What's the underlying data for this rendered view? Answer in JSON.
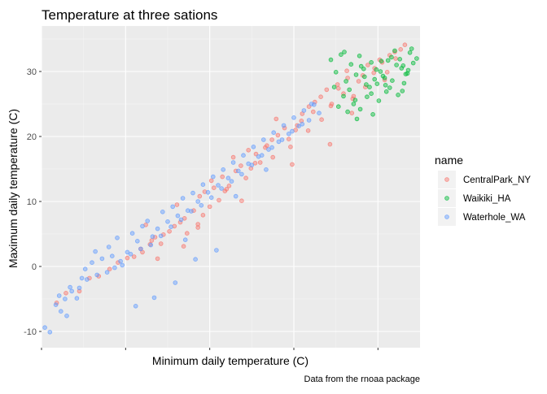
{
  "chart_data": {
    "type": "scatter",
    "title": "Temperature at three sations",
    "xlabel": "Minimum daily temperature (C)",
    "ylabel": "Maximum daily temperature (C)",
    "caption": "Data from the rnoaa package",
    "xlim": [
      -15,
      30
    ],
    "ylim": [
      -12.5,
      37
    ],
    "x_ticks": [
      "",
      "",
      "",
      "",
      ""
    ],
    "y_ticks": [
      -10,
      0,
      10,
      20,
      30
    ],
    "grid": true,
    "legend": {
      "title": "name",
      "position": "right",
      "entries": [
        "CentralPark_NY",
        "Waikiki_HA",
        "Waterhole_WA"
      ]
    },
    "series": [
      {
        "name": "CentralPark_NY",
        "color": "#F8766D",
        "x": [
          -12.1,
          -13.2,
          -9.3,
          -10.5,
          -6.9,
          -8.2,
          -4.8,
          -5.9,
          -3.2,
          -2.1,
          -4.0,
          -1.5,
          -0.8,
          -3.0,
          0.2,
          -1.9,
          1.5,
          -0.5,
          2.3,
          0.8,
          1.9,
          3.1,
          2.0,
          3.6,
          4.2,
          -2.6,
          1.1,
          3.8,
          5.0,
          4.4,
          6.1,
          5.5,
          6.8,
          5.2,
          7.3,
          6.5,
          8.1,
          7.0,
          8.7,
          9.3,
          7.8,
          9.9,
          10.5,
          11.0,
          9.6,
          11.8,
          10.4,
          12.4,
          11.6,
          13.1,
          12.5,
          13.9,
          14.4,
          12.9,
          15.2,
          14.6,
          16.0,
          15.4,
          16.8,
          15.9,
          17.5,
          16.7,
          18.2,
          17.3,
          18.9,
          19.5,
          18.3,
          20.2,
          19.4,
          20.9,
          21.4,
          20.3,
          22.0,
          21.3,
          22.7,
          23.2,
          22.1,
          23.8,
          24.5,
          23.5,
          25.2,
          24.6,
          25.8,
          26.4,
          25.5,
          27.0,
          26.1,
          27.7,
          28.2,
          27.1,
          21.9,
          14.8,
          8.8,
          3.6,
          -1.2,
          19.3
        ],
        "y": [
          -4.1,
          -5.6,
          -1.8,
          -3.8,
          -0.4,
          -1.5,
          1.3,
          0.6,
          2.7,
          3.4,
          1.5,
          4.5,
          3.5,
          2.2,
          5.4,
          4.0,
          6.8,
          4.9,
          5.1,
          6.2,
          3.1,
          8.6,
          7.4,
          6.0,
          7.9,
          6.4,
          9.5,
          10.8,
          9.2,
          11.5,
          10.2,
          12.1,
          11.6,
          13.2,
          12.4,
          13.8,
          14.7,
          11.9,
          15.5,
          13.6,
          16.8,
          15.1,
          17.3,
          16.0,
          17.9,
          18.6,
          15.9,
          19.5,
          18.3,
          20.2,
          16.8,
          21.3,
          19.6,
          22.7,
          21.0,
          18.4,
          23.5,
          21.7,
          24.6,
          22.4,
          25.3,
          20.9,
          26.1,
          23.8,
          27.2,
          25.0,
          22.6,
          28.0,
          24.7,
          26.6,
          29.0,
          27.4,
          25.8,
          30.1,
          28.5,
          29.4,
          26.2,
          31.0,
          29.8,
          27.6,
          31.8,
          30.5,
          28.7,
          32.5,
          31.4,
          33.0,
          29.9,
          33.4,
          34.1,
          32.0,
          23.6,
          15.7,
          10.1,
          6.5,
          1.2,
          18.8
        ]
      },
      {
        "name": "Waikiki_HA",
        "color": "#00BA38",
        "x": [
          19.4,
          20.0,
          20.6,
          19.8,
          21.2,
          21.8,
          20.9,
          22.4,
          21.6,
          23.0,
          22.3,
          23.6,
          22.8,
          24.2,
          23.4,
          24.8,
          24.0,
          25.4,
          24.6,
          26.0,
          25.3,
          26.6,
          25.8,
          27.2,
          26.4,
          27.8,
          27.0,
          28.3,
          27.6,
          28.8,
          28.1,
          29.2,
          28.6,
          29.6,
          21.4,
          22.1,
          22.9,
          23.7,
          24.4,
          25.1,
          25.9,
          26.7,
          27.4,
          28.0,
          28.5,
          20.3,
          21.0,
          26.2,
          24.9,
          23.3,
          22.5,
          27.9,
          29.0,
          25.6,
          24.2
        ],
        "y": [
          31.8,
          29.9,
          32.6,
          27.6,
          28.5,
          31.1,
          26.2,
          29.5,
          27.2,
          30.8,
          25.6,
          28.0,
          32.4,
          26.6,
          29.2,
          30.3,
          27.6,
          31.6,
          28.8,
          26.9,
          30.0,
          32.2,
          29.0,
          31.0,
          27.5,
          30.5,
          33.2,
          29.6,
          31.9,
          32.9,
          28.2,
          31.3,
          30.2,
          32.0,
          23.8,
          25.0,
          24.2,
          26.1,
          23.4,
          25.5,
          27.9,
          28.6,
          26.4,
          30.9,
          29.7,
          24.6,
          33.0,
          31.7,
          28.1,
          30.4,
          22.7,
          27.0,
          33.5,
          29.3,
          31.4
        ]
      },
      {
        "name": "Waterhole_WA",
        "color": "#619CFF",
        "x": [
          -14.6,
          -14.0,
          -13.3,
          -12.7,
          -12.0,
          -11.4,
          -12.9,
          -10.8,
          -10.2,
          -11.6,
          -9.6,
          -9.0,
          -8.4,
          -9.8,
          -7.8,
          -7.2,
          -8.6,
          -6.6,
          -6.0,
          -5.4,
          -7.0,
          -4.8,
          -4.2,
          -5.6,
          -3.6,
          -3.0,
          -4.4,
          -2.4,
          -1.8,
          -3.2,
          -1.2,
          -0.6,
          -2.0,
          0.0,
          0.6,
          -0.8,
          1.2,
          1.8,
          0.4,
          2.4,
          3.0,
          1.6,
          3.6,
          4.2,
          2.8,
          4.8,
          5.4,
          4.0,
          6.0,
          6.6,
          5.2,
          7.2,
          7.8,
          6.4,
          8.4,
          9.0,
          7.6,
          9.6,
          10.2,
          8.8,
          10.8,
          11.4,
          10.0,
          12.0,
          12.6,
          11.2,
          13.2,
          13.8,
          12.4,
          14.4,
          15.0,
          13.6,
          15.6,
          16.2,
          14.8,
          16.8,
          17.4,
          16.0,
          18.0,
          17.1,
          -3.8,
          0.9,
          3.3,
          -1.6,
          5.8,
          -6.3,
          -10.5,
          2.1,
          8.1,
          11.7,
          -12.2
        ],
        "y": [
          -9.4,
          -10.1,
          -5.9,
          -6.9,
          -7.6,
          -3.8,
          -4.5,
          -4.9,
          -1.8,
          -3.2,
          -2.0,
          0.6,
          -1.3,
          -0.4,
          1.2,
          -0.9,
          2.3,
          1.6,
          4.4,
          0.2,
          3.0,
          2.2,
          5.1,
          0.8,
          3.9,
          6.2,
          1.9,
          7.0,
          4.6,
          2.7,
          5.8,
          8.4,
          3.3,
          6.9,
          9.2,
          4.7,
          7.8,
          10.5,
          6.1,
          8.6,
          11.3,
          7.2,
          10.0,
          12.6,
          8.5,
          11.4,
          13.8,
          9.4,
          12.5,
          14.9,
          10.6,
          13.6,
          16.0,
          12.0,
          14.7,
          17.1,
          13.1,
          15.8,
          18.4,
          14.2,
          16.9,
          19.5,
          15.6,
          18.0,
          20.6,
          17.1,
          19.2,
          21.7,
          18.3,
          20.4,
          22.9,
          19.5,
          21.6,
          24.0,
          20.8,
          22.5,
          24.9,
          21.9,
          23.6,
          25.0,
          -6.1,
          -2.5,
          1.1,
          -4.8,
          2.5,
          -0.2,
          -3.3,
          4.1,
          10.8,
          14.9,
          -5.0
        ]
      }
    ]
  }
}
